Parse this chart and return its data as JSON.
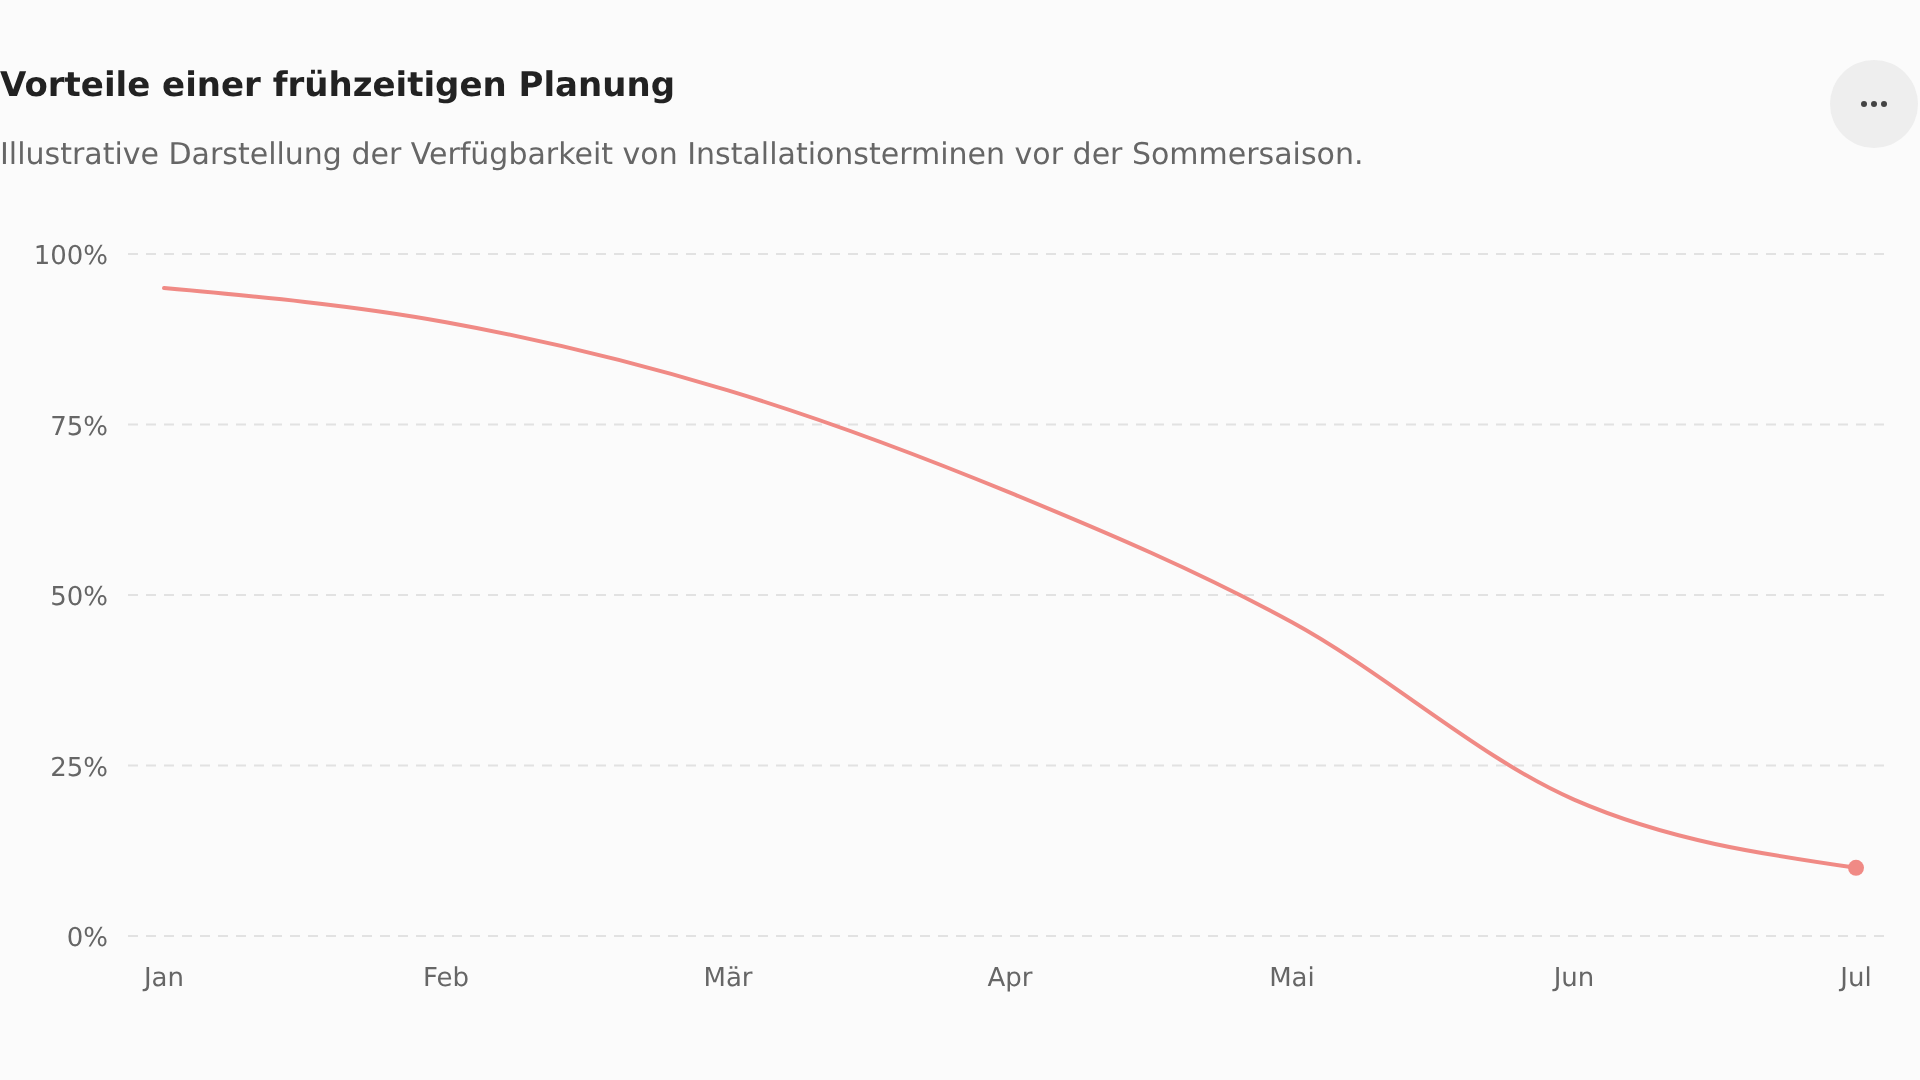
{
  "chart_data": {
    "type": "line",
    "title": "Vorteile einer frühzeitigen Planung",
    "subtitle": "Illustrative Darstellung der Verfügbarkeit von Installationsterminen vor der Sommersaison.",
    "categories": [
      "Jan",
      "Feb",
      "Mär",
      "Apr",
      "Mai",
      "Jun",
      "Jul"
    ],
    "series": [
      {
        "color": "#f08a85",
        "values": [
          95,
          90,
          80,
          65,
          46,
          20,
          10
        ]
      },
      {
        "type": "scatter",
        "marker": "circle",
        "color": "#f08a85",
        "values": [
          null,
          null,
          null,
          null,
          null,
          null,
          10
        ]
      }
    ],
    "ylim": [
      0,
      100
    ],
    "yticks": [
      {
        "value": 0,
        "label": "0%"
      },
      {
        "value": 25,
        "label": "25%"
      },
      {
        "value": 50,
        "label": "50%"
      },
      {
        "value": 75,
        "label": "75%"
      },
      {
        "value": 100,
        "label": "100%"
      }
    ],
    "grid": "y",
    "marker": "none"
  }
}
